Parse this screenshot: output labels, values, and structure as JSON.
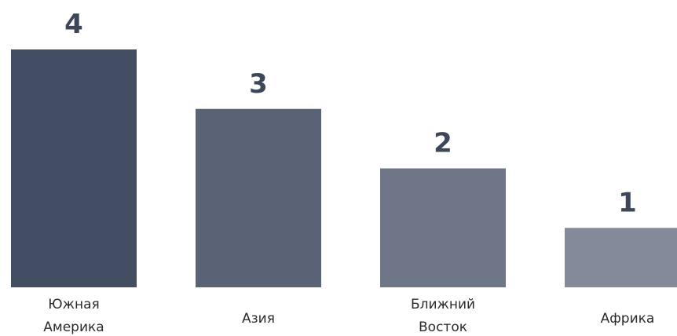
{
  "chart_data": {
    "type": "bar",
    "categories": [
      [
        "Южная",
        "Америка"
      ],
      [
        "Азия"
      ],
      [
        "Ближний",
        "Восток"
      ],
      [
        "Африка"
      ]
    ],
    "values": [
      4,
      3,
      2,
      1
    ],
    "data_labels": [
      "4",
      "3",
      "2",
      "1"
    ],
    "title": "",
    "xlabel": "",
    "ylabel": "",
    "ylim": [
      0,
      4
    ],
    "grid": false,
    "legend": "none",
    "bar_colors": [
      "#444e62",
      "#5a6275",
      "#6f7687",
      "#858a9a"
    ]
  }
}
